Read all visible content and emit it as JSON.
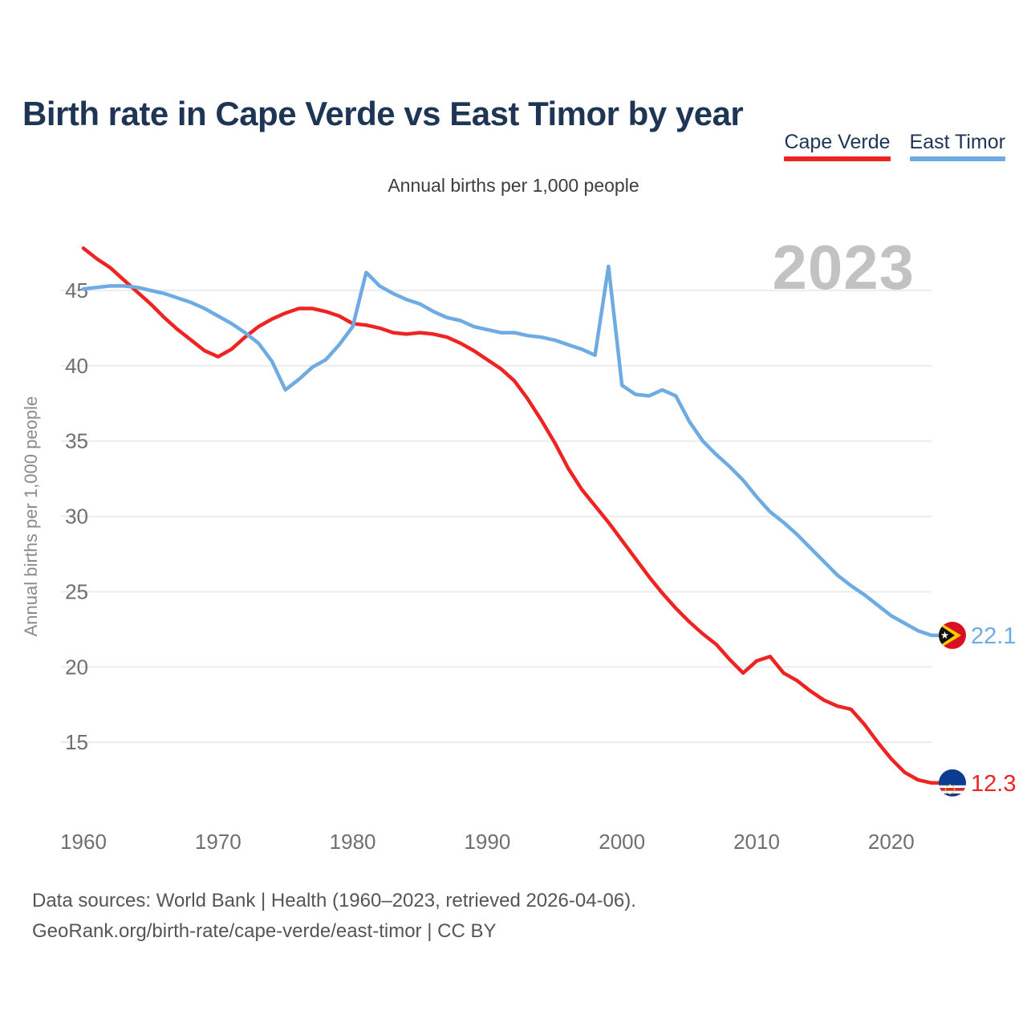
{
  "header": {
    "title": "Birth rate in Cape Verde vs East Timor by year",
    "subtitle": "Annual births per 1,000 people"
  },
  "legend": [
    {
      "label": "Cape Verde",
      "color": "#ee2423"
    },
    {
      "label": "East Timor",
      "color": "#6fabe3"
    }
  ],
  "watermark": "2023",
  "chart_data": {
    "type": "line",
    "title": "Birth rate in Cape Verde vs East Timor by year",
    "subtitle": "Annual births per 1,000 people",
    "xlabel": "",
    "ylabel": "Annual births per 1,000 people",
    "xlim": [
      1960,
      2023
    ],
    "ylim": [
      11.5,
      48.5
    ],
    "grid": "horizontal-only",
    "legend_position": "top-right",
    "yticks": [
      15,
      20,
      25,
      30,
      35,
      40,
      45
    ],
    "xticks": [
      1960,
      1970,
      1980,
      1990,
      2000,
      2010,
      2020
    ],
    "x": [
      1960,
      1961,
      1962,
      1963,
      1964,
      1965,
      1966,
      1967,
      1968,
      1969,
      1970,
      1971,
      1972,
      1973,
      1974,
      1975,
      1976,
      1977,
      1978,
      1979,
      1980,
      1981,
      1982,
      1983,
      1984,
      1985,
      1986,
      1987,
      1988,
      1989,
      1990,
      1991,
      1992,
      1993,
      1994,
      1995,
      1996,
      1997,
      1998,
      1999,
      2000,
      2001,
      2002,
      2003,
      2004,
      2005,
      2006,
      2007,
      2008,
      2009,
      2010,
      2011,
      2012,
      2013,
      2014,
      2015,
      2016,
      2017,
      2018,
      2019,
      2020,
      2021,
      2022,
      2023
    ],
    "series": [
      {
        "name": "Cape Verde",
        "id": "cape-verde",
        "color": "#ee2423",
        "end_label": "12.3",
        "flag": "cape-verde-flag",
        "values": [
          47.8,
          47.1,
          46.5,
          45.7,
          44.9,
          44.1,
          43.2,
          42.4,
          41.7,
          41.0,
          40.6,
          41.1,
          41.9,
          42.6,
          43.1,
          43.5,
          43.8,
          43.8,
          43.6,
          43.3,
          42.8,
          42.7,
          42.5,
          42.2,
          42.1,
          42.2,
          42.1,
          41.9,
          41.5,
          41.0,
          40.4,
          39.8,
          39.0,
          37.8,
          36.4,
          34.9,
          33.2,
          31.8,
          30.7,
          29.6,
          28.4,
          27.2,
          26.0,
          24.9,
          23.9,
          23.0,
          22.2,
          21.5,
          20.5,
          19.6,
          20.4,
          20.7,
          19.6,
          19.1,
          18.4,
          17.8,
          17.4,
          17.2,
          16.2,
          15.0,
          13.9,
          13.0,
          12.5,
          12.3
        ]
      },
      {
        "name": "East Timor",
        "id": "east-timor",
        "color": "#6fabe3",
        "end_label": "22.1",
        "flag": "east-timor-flag",
        "values": [
          45.1,
          45.2,
          45.3,
          45.3,
          45.2,
          45.0,
          44.8,
          44.5,
          44.2,
          43.8,
          43.3,
          42.8,
          42.2,
          41.5,
          40.3,
          38.4,
          39.1,
          39.9,
          40.4,
          41.4,
          42.6,
          46.2,
          45.3,
          44.8,
          44.4,
          44.1,
          43.6,
          43.2,
          43.0,
          42.6,
          42.4,
          42.2,
          42.2,
          42.0,
          41.9,
          41.7,
          41.4,
          41.1,
          40.7,
          46.6,
          38.7,
          38.1,
          38.0,
          38.4,
          38.0,
          36.3,
          35.0,
          34.1,
          33.3,
          32.4,
          31.3,
          30.3,
          29.6,
          28.8,
          27.9,
          27.0,
          26.1,
          25.4,
          24.8,
          24.1,
          23.4,
          22.9,
          22.4,
          22.1
        ]
      }
    ]
  },
  "footer": {
    "line1": "Data sources: World Bank | Health (1960–2023, retrieved 2026-04-06).",
    "line2": "GeoRank.org/birth-rate/cape-verde/east-timor | CC BY"
  },
  "colors": {
    "title": "#1e3555",
    "tick": "#6f6f6f",
    "gridline": "#ececec",
    "watermark": "#c2c2c2",
    "footer": "#555555"
  }
}
